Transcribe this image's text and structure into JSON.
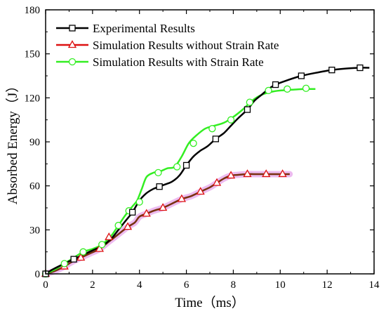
{
  "chart_data": {
    "type": "line",
    "xlabel": "Time（ms）",
    "ylabel": "Absorbed Energy（J）",
    "xlim": [
      0,
      14
    ],
    "ylim": [
      0,
      180
    ],
    "xticks": [
      0,
      2,
      4,
      6,
      8,
      10,
      12,
      14
    ],
    "yticks": [
      0,
      30,
      60,
      90,
      120,
      150,
      180
    ],
    "grid": false,
    "legend_position": "top-left",
    "series": [
      {
        "name": "Experimental Results",
        "color": "#000000",
        "marker": "square",
        "x": [
          0,
          0.3,
          0.8,
          1.2,
          1.6,
          2.0,
          2.4,
          2.8,
          3.1,
          3.4,
          3.7,
          4.0,
          4.3,
          4.6,
          4.85,
          5.1,
          5.4,
          5.7,
          6.0,
          6.3,
          6.6,
          6.9,
          7.25,
          7.6,
          7.9,
          8.2,
          8.6,
          8.9,
          9.2,
          9.5,
          9.8,
          10.3,
          10.9,
          11.5,
          12.2,
          12.8,
          13.4,
          13.8
        ],
        "y": [
          0,
          3,
          7,
          10,
          13,
          16,
          19,
          24,
          30,
          36,
          42,
          50,
          55,
          58,
          59.5,
          61,
          63,
          67,
          74,
          80,
          84,
          87,
          92,
          96,
          101,
          106,
          112,
          118,
          122,
          126,
          129,
          132,
          135,
          137,
          139,
          140,
          140.5,
          140.5
        ],
        "marker_x": [
          0,
          1.2,
          3.7,
          4.85,
          6.0,
          7.25,
          8.6,
          9.8,
          10.9,
          12.2,
          13.4
        ],
        "marker_y": [
          0,
          10,
          42,
          59.5,
          74,
          92,
          112,
          129,
          135,
          139,
          140.5
        ]
      },
      {
        "name": "Simulation Results without Strain Rate",
        "color": "#dd1111",
        "halo": "#e8aaec",
        "marker": "triangle",
        "x": [
          0,
          0.4,
          0.8,
          1.1,
          1.5,
          1.9,
          2.3,
          2.7,
          3.1,
          3.5,
          3.8,
          4.0,
          4.3,
          4.6,
          5.0,
          5.4,
          5.8,
          6.2,
          6.6,
          7.0,
          7.3,
          7.6,
          7.9,
          8.2,
          8.6,
          9.0,
          9.4,
          9.9,
          10.4
        ],
        "y": [
          0,
          2,
          5,
          8,
          11,
          14,
          17,
          22,
          27,
          32,
          35,
          39,
          41,
          43,
          45,
          48,
          51,
          53,
          56,
          59,
          62,
          65,
          67,
          67.5,
          68,
          68,
          68,
          68,
          68
        ],
        "marker_x": [
          0,
          0.8,
          1.5,
          2.3,
          2.7,
          3.5,
          4.3,
          5.0,
          5.8,
          6.6,
          7.3,
          7.9,
          8.6,
          9.4,
          10.1
        ],
        "marker_y": [
          0,
          5,
          11,
          17,
          25,
          32,
          41,
          45,
          51,
          56,
          62,
          67,
          68,
          68,
          68
        ]
      },
      {
        "name": "Simulation Results with Strain Rate",
        "color": "#33ee22",
        "marker": "circle",
        "x": [
          0,
          0.4,
          0.8,
          1.2,
          1.6,
          2.0,
          2.4,
          2.8,
          3.1,
          3.4,
          3.7,
          3.9,
          4.1,
          4.3,
          4.6,
          4.9,
          5.2,
          5.5,
          5.8,
          6.1,
          6.4,
          6.8,
          7.2,
          7.6,
          8.0,
          8.4,
          8.8,
          9.2,
          9.6,
          10.0,
          10.5,
          11.0,
          11.5
        ],
        "y": [
          0,
          3,
          7,
          11,
          15,
          17,
          20,
          26,
          33,
          40,
          46,
          50,
          58,
          66,
          69,
          70,
          72,
          73,
          80,
          89,
          94,
          99,
          101,
          103,
          107,
          112,
          118,
          122,
          124,
          125,
          125.5,
          126,
          126
        ],
        "marker_x": [
          0,
          0.8,
          1.6,
          2.4,
          3.1,
          3.55,
          4.0,
          4.8,
          5.6,
          6.3,
          7.1,
          7.9,
          8.7,
          9.5,
          10.3,
          11.1
        ],
        "marker_y": [
          0,
          7,
          15,
          20,
          33,
          43,
          49,
          69,
          73,
          89,
          99,
          105,
          117,
          125,
          126,
          126.5
        ]
      }
    ]
  }
}
